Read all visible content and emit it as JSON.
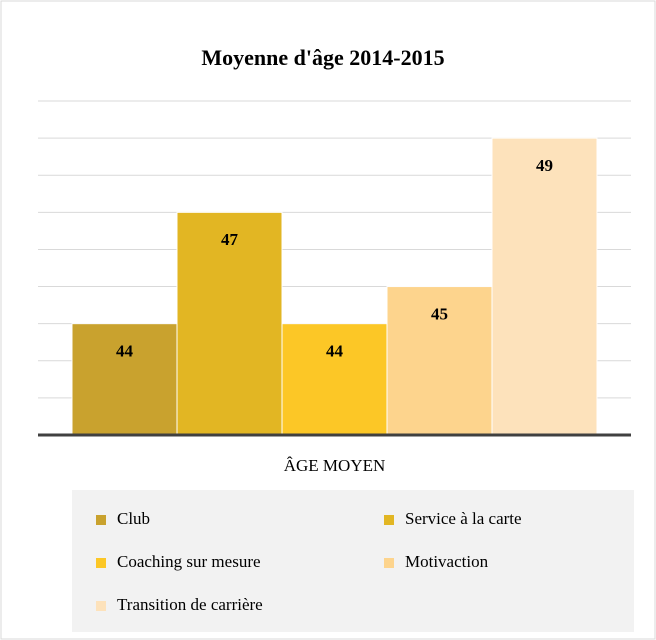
{
  "chart_data": {
    "type": "bar",
    "title": "Moyenne d'âge 2014-2015",
    "categories": [
      "ÂGE MOYEN"
    ],
    "series": [
      {
        "name": "Club",
        "color": "#c9a22e",
        "values": [
          44
        ]
      },
      {
        "name": "Service à la carte",
        "color": "#e2b623",
        "values": [
          47
        ]
      },
      {
        "name": "Coaching sur mesure",
        "color": "#fcc726",
        "values": [
          44
        ]
      },
      {
        "name": "Motivaction",
        "color": "#fdd48d",
        "values": [
          45
        ]
      },
      {
        "name": "Transition de carrière",
        "color": "#fde2bb",
        "values": [
          49
        ]
      }
    ],
    "ylim": [
      41,
      50
    ],
    "yticks": [
      41,
      42,
      43,
      44,
      45,
      46,
      47,
      48,
      49,
      50
    ],
    "grid": true
  }
}
